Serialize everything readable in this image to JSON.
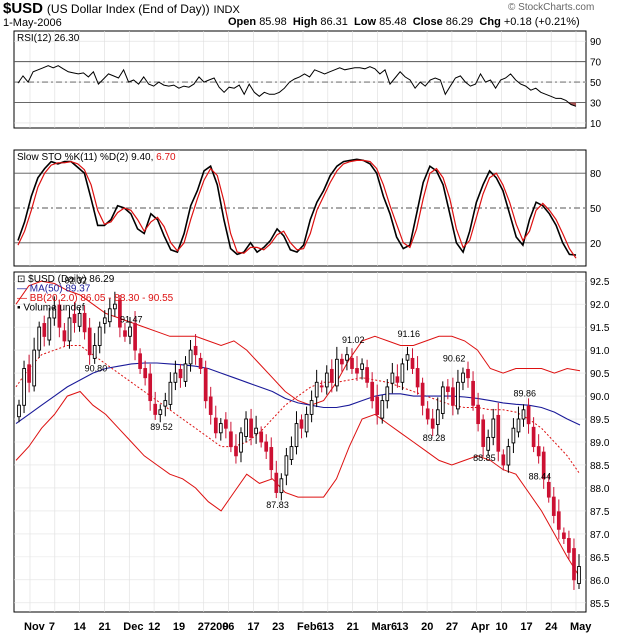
{
  "header": {
    "symbol": "$USD",
    "name": "(US Dollar Index (End of Day))",
    "exchange": "INDX",
    "date": "1-May-2006",
    "open_label": "Open",
    "open": "85.98",
    "high_label": "High",
    "high": "86.31",
    "low_label": "Low",
    "low": "85.48",
    "close_label": "Close",
    "close": "86.29",
    "chg_label": "Chg",
    "chg": "+0.18 (+0.21%)",
    "credit": "© StockCharts.com"
  },
  "colors": {
    "up_candle": "#000000",
    "down_candle": "#cc1133",
    "ma50": "#1a1a99",
    "bollinger": "#dd1111",
    "stoch_d": "#dd1111",
    "rsi_fill": "#aa5555"
  },
  "chart_data": [
    {
      "type": "line",
      "panel": "rsi",
      "label": "RSI(12) 26.30",
      "ylim": [
        0,
        100
      ],
      "yticks": [
        10,
        30,
        50,
        70,
        90
      ],
      "ref_lines": [
        30,
        50,
        70
      ],
      "values": [
        49,
        56,
        50,
        60,
        62,
        64,
        66,
        64,
        66,
        63,
        60,
        59,
        58,
        59,
        55,
        60,
        48,
        53,
        58,
        56,
        54,
        62,
        50,
        52,
        48,
        55,
        48,
        46,
        50,
        47,
        46,
        47,
        44,
        46,
        45,
        48,
        55,
        50,
        52,
        54,
        45,
        40,
        45,
        44,
        47,
        38,
        48,
        40,
        36,
        40,
        38,
        38,
        40,
        44,
        50,
        53,
        55,
        58,
        55,
        62,
        60,
        58,
        60,
        62,
        64,
        62,
        63,
        64,
        64,
        63,
        65,
        63,
        58,
        62,
        48,
        54,
        60,
        55,
        52,
        44,
        50,
        46,
        52,
        54,
        52,
        38,
        46,
        54,
        56,
        50,
        46,
        48,
        58,
        50,
        52,
        44,
        52,
        54,
        58,
        52,
        48,
        46,
        42,
        44,
        40,
        38,
        36,
        34,
        34,
        32,
        28,
        26.3
      ]
    },
    {
      "type": "line",
      "panel": "slow_sto",
      "label_k": "Slow STO %K(11)",
      "label_d": "%D(2)",
      "value_k": "9.40",
      "value_d": "6.70",
      "ylim": [
        0,
        100
      ],
      "yticks": [
        20,
        50,
        80
      ],
      "ref_lines": [
        20,
        50,
        80
      ],
      "series": [
        {
          "name": "%K",
          "values": [
            22,
            38,
            60,
            76,
            84,
            90,
            88,
            90,
            90,
            85,
            80,
            58,
            35,
            35,
            40,
            52,
            50,
            45,
            32,
            28,
            45,
            40,
            26,
            14,
            12,
            28,
            52,
            65,
            82,
            86,
            70,
            40,
            15,
            10,
            12,
            20,
            12,
            16,
            22,
            32,
            26,
            14,
            12,
            18,
            40,
            55,
            65,
            78,
            86,
            90,
            91,
            92,
            91,
            88,
            80,
            60,
            45,
            25,
            15,
            18,
            45,
            72,
            86,
            82,
            70,
            45,
            20,
            12,
            30,
            55,
            70,
            82,
            76,
            65,
            45,
            25,
            18,
            40,
            55,
            52,
            45,
            35,
            20,
            10,
            9.4
          ]
        },
        {
          "name": "%D",
          "values": [
            18,
            30,
            48,
            68,
            80,
            87,
            89,
            89,
            90,
            88,
            83,
            70,
            48,
            36,
            38,
            46,
            50,
            48,
            40,
            30,
            38,
            42,
            34,
            20,
            13,
            20,
            40,
            58,
            74,
            84,
            78,
            56,
            28,
            12,
            11,
            16,
            16,
            14,
            19,
            27,
            30,
            20,
            14,
            15,
            28,
            48,
            60,
            72,
            82,
            88,
            90,
            91,
            91,
            90,
            84,
            70,
            52,
            36,
            20,
            16,
            32,
            58,
            80,
            84,
            76,
            58,
            32,
            16,
            22,
            42,
            62,
            76,
            80,
            70,
            55,
            36,
            22,
            30,
            48,
            54,
            48,
            40,
            28,
            15,
            6.7
          ]
        }
      ]
    },
    {
      "type": "candlestick",
      "panel": "price",
      "label": "$USD (Daily) 86.29",
      "ylim": [
        85.3,
        92.7
      ],
      "yticks": [
        85.5,
        86.0,
        86.5,
        87.0,
        87.5,
        88.0,
        88.5,
        89.0,
        89.5,
        90.0,
        90.5,
        91.0,
        91.5,
        92.0,
        92.5
      ],
      "xlabels": [
        "Nov",
        "7",
        "14",
        "21",
        "Dec",
        "12",
        "19",
        "272006",
        "9",
        "17",
        "23",
        "Feb6",
        "13",
        "21",
        "Mar6",
        "13",
        "20",
        "27",
        "Apr",
        "10",
        "17",
        "24",
        "May"
      ],
      "series_close": [
        89.8,
        90.6,
        90.3,
        91.0,
        91.5,
        91.3,
        91.7,
        91.9,
        91.5,
        91.2,
        91.7,
        91.6,
        91.8,
        91.4,
        90.9,
        91.1,
        91.5,
        91.7,
        91.9,
        92.0,
        91.5,
        91.3,
        91.5,
        91.0,
        90.6,
        90.4,
        89.9,
        89.6,
        89.7,
        89.9,
        90.3,
        90.5,
        90.4,
        90.7,
        91.0,
        90.9,
        90.6,
        89.9,
        89.6,
        89.2,
        89.4,
        89.3,
        88.9,
        88.7,
        89.2,
        89.5,
        89.1,
        89.3,
        89.0,
        88.8,
        88.4,
        87.9,
        88.2,
        88.7,
        88.9,
        89.4,
        89.3,
        89.6,
        89.9,
        90.3,
        90.2,
        90.5,
        90.3,
        90.8,
        90.7,
        90.9,
        90.6,
        90.5,
        90.7,
        90.3,
        89.9,
        89.6,
        89.9,
        90.2,
        90.5,
        90.3,
        90.7,
        90.9,
        90.6,
        90.2,
        89.8,
        89.5,
        89.3,
        89.7,
        90.2,
        90.1,
        89.8,
        90.3,
        90.5,
        90.4,
        89.8,
        89.4,
        88.9,
        89.1,
        89.5,
        88.8,
        88.5,
        88.9,
        89.3,
        89.5,
        89.7,
        89.4,
        88.9,
        88.7,
        88.2,
        87.8,
        87.4,
        87.1,
        86.9,
        86.6,
        86.0,
        86.29
      ],
      "ma50": {
        "label": "MA(50) 89.37",
        "values": [
          89.4,
          89.6,
          89.8,
          90.0,
          90.2,
          90.35,
          90.5,
          90.6,
          90.65,
          90.7,
          90.72,
          90.72,
          90.7,
          90.68,
          90.65,
          90.6,
          90.5,
          90.4,
          90.3,
          90.2,
          90.1,
          89.95,
          89.85,
          89.8,
          89.75,
          89.75,
          89.8,
          89.9,
          90.0,
          90.05,
          90.05,
          90.0,
          90.0,
          90.0,
          90.0,
          89.98,
          89.95,
          89.9,
          89.85,
          89.82,
          89.8,
          89.75,
          89.65,
          89.5,
          89.37
        ]
      },
      "bollinger": {
        "label": "BB(20,2.0) 86.05 - 88.30 - 90.55",
        "upper": [
          92.0,
          92.4,
          92.5,
          92.45,
          92.3,
          92.2,
          92.0,
          91.8,
          91.7,
          91.6,
          91.5,
          91.4,
          91.3,
          91.3,
          91.3,
          91.2,
          91.1,
          91.2,
          91.0,
          90.7,
          90.4,
          90.1,
          89.9,
          89.8,
          89.9,
          90.3,
          90.8,
          91.2,
          91.3,
          91.2,
          91.1,
          91.1,
          91.2,
          91.3,
          91.3,
          91.2,
          91.0,
          90.6,
          90.5,
          90.6,
          90.6,
          90.6,
          90.5,
          90.6,
          90.55
        ],
        "mid": [
          90.2,
          90.6,
          90.9,
          91.0,
          91.1,
          91.1,
          90.9,
          90.7,
          90.5,
          90.3,
          90.1,
          89.9,
          89.7,
          89.5,
          89.3,
          89.1,
          88.9,
          88.9,
          89.0,
          89.2,
          89.5,
          89.8,
          90.0,
          90.2,
          90.3,
          90.3,
          90.35,
          90.4,
          90.35,
          90.3,
          90.2,
          90.1,
          90.0,
          89.9,
          89.8,
          89.75,
          89.75,
          89.7,
          89.7,
          89.65,
          89.5,
          89.3,
          89.0,
          88.7,
          88.3
        ],
        "lower": [
          88.6,
          88.9,
          89.3,
          89.6,
          90.0,
          90.1,
          89.8,
          89.6,
          89.3,
          89.0,
          88.7,
          88.5,
          88.3,
          88.2,
          88.0,
          87.7,
          87.5,
          87.9,
          88.3,
          88.1,
          88.2,
          87.9,
          87.8,
          87.8,
          87.8,
          88.2,
          88.9,
          89.5,
          89.6,
          89.4,
          89.2,
          89.0,
          88.8,
          88.6,
          88.5,
          88.6,
          88.7,
          88.6,
          88.4,
          88.3,
          87.9,
          87.5,
          87.0,
          86.5,
          86.05
        ]
      },
      "volume_label": "Volume undef",
      "annotations": [
        "92.32",
        "91.47",
        "90.80",
        "89.52",
        "87.83",
        "91.02",
        "91.16",
        "89.28",
        "90.62",
        "88.85",
        "89.86",
        "88.44"
      ]
    }
  ]
}
